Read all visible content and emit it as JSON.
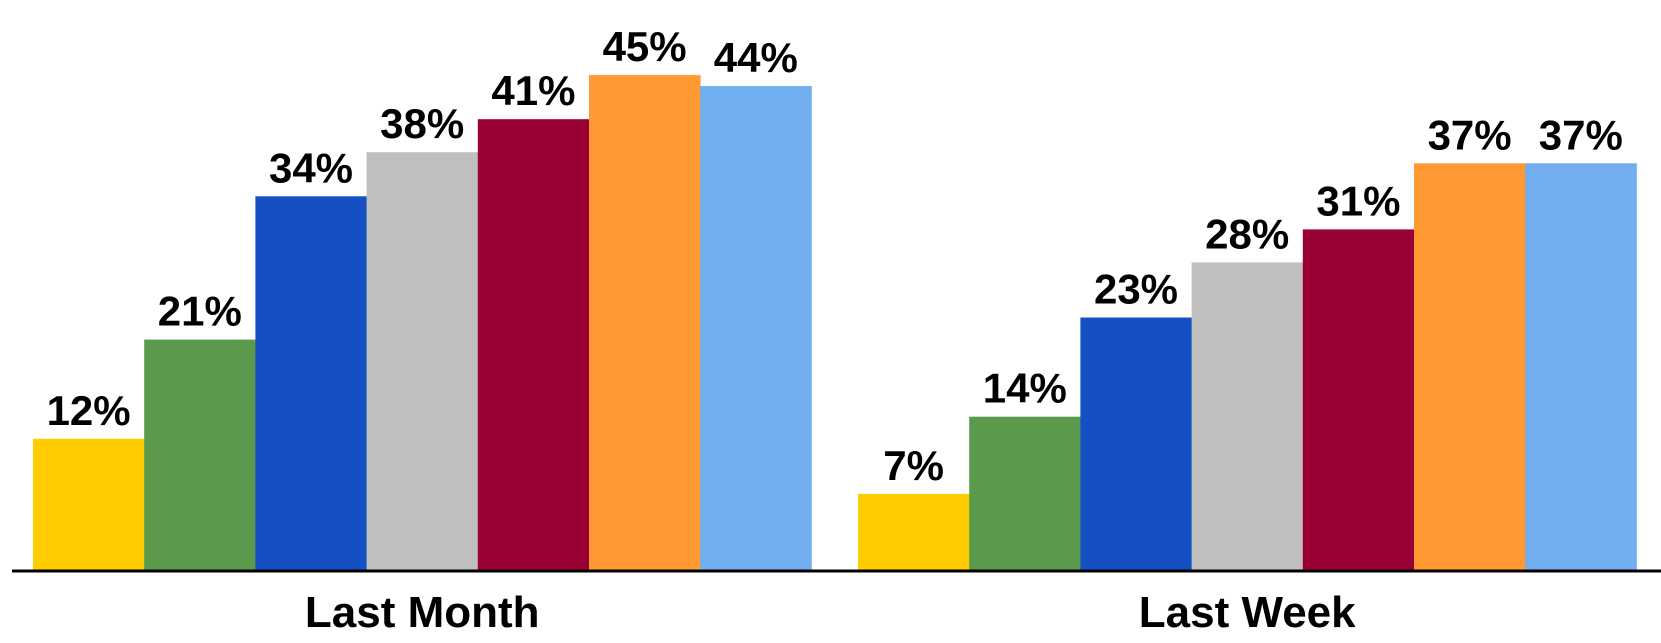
{
  "chart_data": {
    "type": "bar",
    "title": "",
    "xlabel": "",
    "ylabel": "",
    "categories": [
      "Last Month",
      "Last Week"
    ],
    "ylim": [
      0,
      50
    ],
    "grid": false,
    "legend": "none",
    "value_format": "percent",
    "series": [
      {
        "values": [
          12,
          7
        ],
        "color": "#FFCC00"
      },
      {
        "values": [
          21,
          14
        ],
        "color": "#5B9A4D"
      },
      {
        "values": [
          34,
          23
        ],
        "color": "#1450C4"
      },
      {
        "values": [
          38,
          28
        ],
        "color": "#BFBFBF"
      },
      {
        "values": [
          41,
          31
        ],
        "color": "#990033"
      },
      {
        "values": [
          45,
          37
        ],
        "color": "#FF9933"
      },
      {
        "values": [
          44,
          37
        ],
        "color": "#70AEF0"
      }
    ],
    "labels": [
      [
        "12%",
        "7%"
      ],
      [
        "21%",
        "14%"
      ],
      [
        "34%",
        "23%"
      ],
      [
        "38%",
        "28%"
      ],
      [
        "41%",
        "31%"
      ],
      [
        "45%",
        "37%"
      ],
      [
        "44%",
        "37%"
      ]
    ]
  }
}
